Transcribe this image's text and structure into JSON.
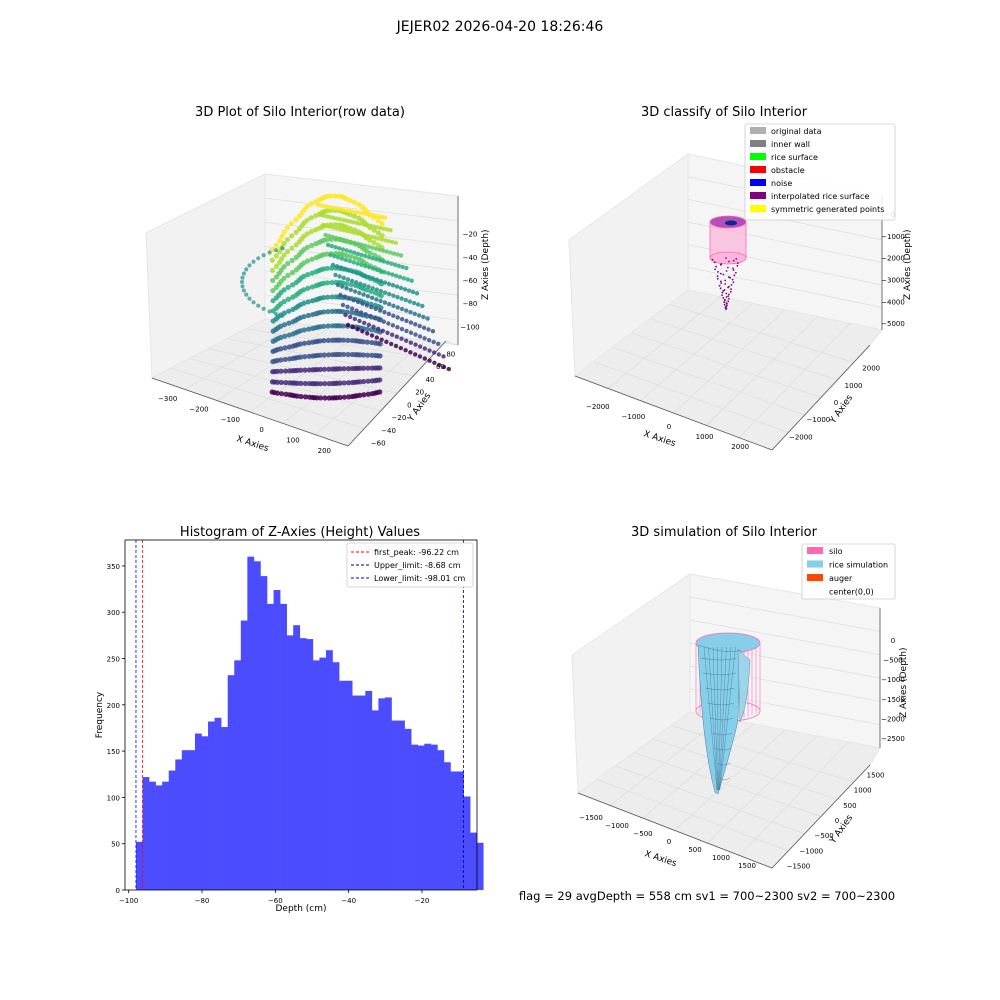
{
  "suptitle": "JEJER02 2026-04-20 18:26:46",
  "footer": "flag = 29  avgDepth = 558 cm  sv1 = 700~2300  sv2 = 700~2300",
  "colors": {
    "hist_bar": "#4c4cff",
    "first_peak": "#ff0000",
    "upper_limit": "#000080",
    "lower_limit": "#0000ff",
    "viridis_low": "#440154",
    "viridis_mid": "#21918c",
    "viridis_high": "#fde725",
    "silo": "#ff69b4",
    "rice_simulation": "#87ceeb"
  },
  "chart_data": [
    {
      "type": "scatter",
      "title": "3D Plot of Silo Interior(row data)",
      "xlabel": "X Axies",
      "ylabel": "Y Axies",
      "zlabel": "Z Axies (Depth)",
      "xticks": [
        "−300",
        "−200",
        "−100",
        "0",
        "100",
        "200"
      ],
      "yticks": [
        "−60",
        "−40",
        "−20",
        "0",
        "20",
        "40",
        "60",
        "80"
      ],
      "zticks": [
        "−20",
        "−40",
        "−60",
        "−80",
        "−100"
      ],
      "colormap": "viridis"
    },
    {
      "type": "scatter",
      "title": "3D classify of Silo Interior",
      "xlabel": "X Axies",
      "ylabel": "Y Axies",
      "zlabel": "Z Axies (Depth)",
      "xticks": [
        "−2000",
        "−1000",
        "0",
        "1000",
        "2000"
      ],
      "yticks": [
        "−2000",
        "−1000",
        "0",
        "1000",
        "2000"
      ],
      "zticks": [
        "0",
        "−1000",
        "−2000",
        "−3000",
        "−4000",
        "−5000"
      ],
      "legend_position": "top-right",
      "legend": [
        {
          "label": "original data",
          "color": "#b0b0b0"
        },
        {
          "label": "inner wall",
          "color": "#808080"
        },
        {
          "label": "rice surface",
          "color": "#00ff00"
        },
        {
          "label": "obstacle",
          "color": "#ff0000"
        },
        {
          "label": "noise",
          "color": "#0000ff"
        },
        {
          "label": "interpolated rice surface",
          "color": "#800080"
        },
        {
          "label": "symmetric generated points",
          "color": "#ffff00"
        }
      ]
    },
    {
      "type": "bar",
      "title": "Histogram of Z-Axies (Height) Values",
      "xlabel": "Depth (cm)",
      "ylabel": "Frequency",
      "xlim": [
        -101,
        -5
      ],
      "ylim": [
        0,
        378
      ],
      "xticks": [
        -100,
        -80,
        -60,
        -40,
        -20
      ],
      "yticks": [
        0,
        50,
        100,
        150,
        200,
        250,
        300,
        350
      ],
      "bin_start": -98.01,
      "bin_width": 1.787,
      "values": [
        52,
        122,
        117,
        113,
        117,
        129,
        141,
        151,
        151,
        169,
        166,
        182,
        186,
        176,
        232,
        248,
        291,
        360,
        355,
        339,
        309,
        324,
        309,
        275,
        286,
        272,
        271,
        248,
        251,
        259,
        246,
        226,
        226,
        210,
        210,
        215,
        194,
        207,
        208,
        183,
        183,
        174,
        157,
        156,
        158,
        157,
        151,
        138,
        128,
        128,
        101,
        62,
        51
      ],
      "lines": [
        {
          "label": "first_peak: -96.22 cm",
          "x": -96.22,
          "color": "#ff0000"
        },
        {
          "label": "Upper_limit: -8.68 cm",
          "x": -8.68,
          "color": "#000080"
        },
        {
          "label": "Lower_limit: -98.01 cm",
          "x": -98.01,
          "color": "#0000ff"
        }
      ],
      "legend_position": "top-right"
    },
    {
      "type": "area",
      "title": "3D simulation of Silo Interior",
      "xlabel": "X Axies",
      "ylabel": "Y Axies",
      "zlabel": "Z Axies (Depth)",
      "xticks": [
        "−1500",
        "−1000",
        "−500",
        "0",
        "500",
        "1000",
        "1500"
      ],
      "yticks": [
        "−1500",
        "−1000",
        "−500",
        "0",
        "500",
        "1000",
        "1500"
      ],
      "zticks": [
        "0",
        "−500",
        "−1000",
        "−1500",
        "−2000",
        "−2500"
      ],
      "legend_position": "top-right",
      "legend": [
        {
          "label": "silo",
          "color": "#ff69b4"
        },
        {
          "label": "rice simulation",
          "color": "#87ceeb"
        },
        {
          "label": "auger",
          "color": "#ff4500"
        },
        {
          "label": "center(0,0)",
          "color": "#ffffff"
        }
      ]
    }
  ]
}
